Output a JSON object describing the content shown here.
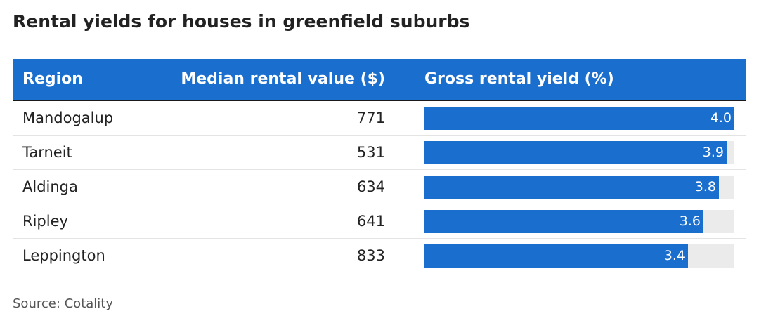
{
  "title": "Rental yields for houses in greenfield suburbs",
  "source": "Source: Cotality",
  "chart_data": {
    "type": "table",
    "title": "Rental yields for houses in greenfield suburbs",
    "columns": [
      "Region",
      "Median rental value ($)",
      "Gross rental yield (%)"
    ],
    "bar_color": "#1a6ece",
    "header_color": "#1a6ece",
    "bar_max": 4.0,
    "rows": [
      {
        "region": "Mandogalup",
        "rent": "771",
        "yield": 4.0,
        "yield_label": "4.0"
      },
      {
        "region": "Tarneit",
        "rent": "531",
        "yield": 3.9,
        "yield_label": "3.9"
      },
      {
        "region": "Aldinga",
        "rent": "634",
        "yield": 3.8,
        "yield_label": "3.8"
      },
      {
        "region": "Ripley",
        "rent": "641",
        "yield": 3.6,
        "yield_label": "3.6"
      },
      {
        "region": "Leppington",
        "rent": "833",
        "yield": 3.4,
        "yield_label": "3.4"
      }
    ]
  }
}
